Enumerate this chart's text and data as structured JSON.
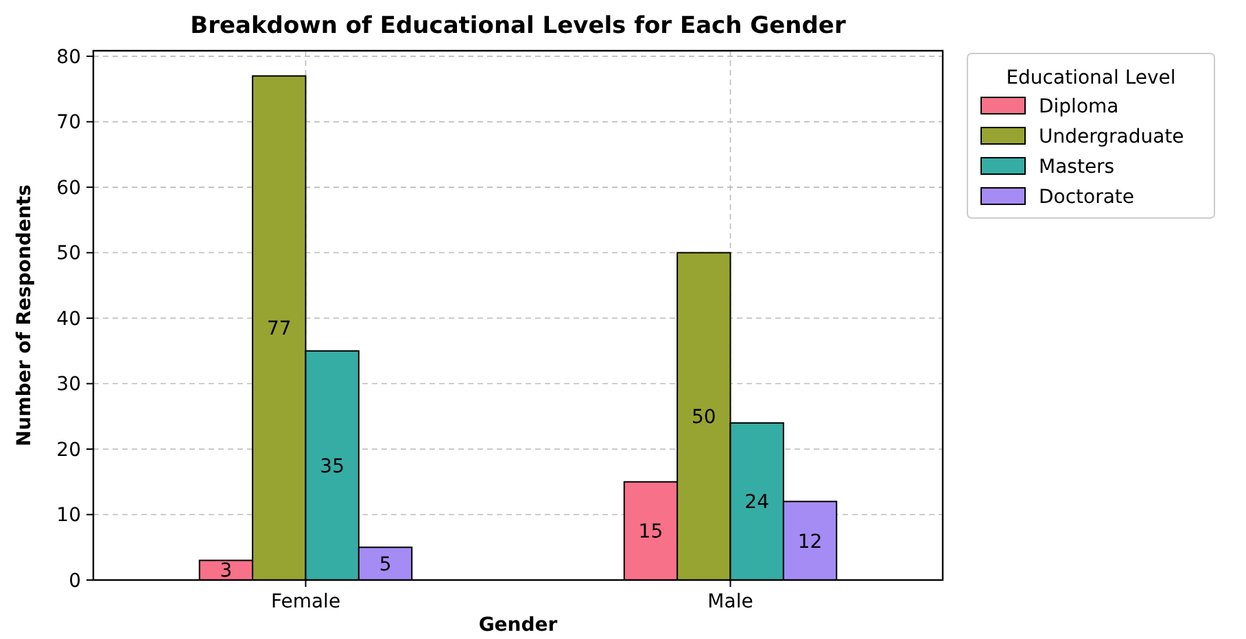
{
  "chart_data": {
    "type": "bar",
    "title": "Breakdown of Educational Levels for Each Gender",
    "xlabel": "Gender",
    "ylabel": "Number of Respondents",
    "legend_title": "Educational Level",
    "categories": [
      "Female",
      "Male"
    ],
    "series": [
      {
        "name": "Diploma",
        "color": "#f77189",
        "values": [
          3,
          15
        ]
      },
      {
        "name": "Undergraduate",
        "color": "#97a431",
        "values": [
          77,
          50
        ]
      },
      {
        "name": "Masters",
        "color": "#36ada4",
        "values": [
          35,
          24
        ]
      },
      {
        "name": "Doctorate",
        "color": "#a48cf4",
        "values": [
          5,
          12
        ]
      }
    ],
    "ylim": [
      0,
      80.85
    ],
    "yticks": [
      0,
      10,
      20,
      30,
      40,
      50,
      60,
      70,
      80
    ],
    "grid": true,
    "legend": "top right",
    "data_labels": true
  }
}
